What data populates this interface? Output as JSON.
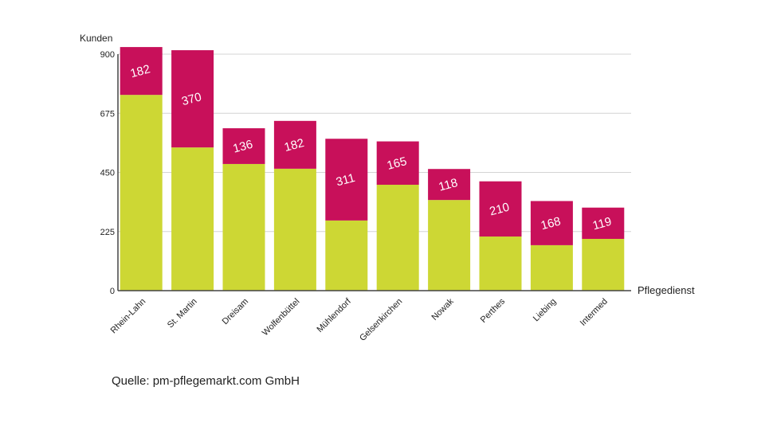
{
  "chart_data": {
    "type": "bar",
    "stacked": true,
    "title": "",
    "ylabel": "Kunden",
    "xlabel": "Pflegedienst",
    "ylim": [
      0,
      900
    ],
    "yticks": [
      0,
      225,
      450,
      675,
      900
    ],
    "grid": true,
    "categories": [
      "Rhein-Lahn",
      "St. Martin",
      "Dreisam",
      "Wolfenbüttel",
      "Mühlendorf",
      "Gelsenkirchen",
      "Nowak",
      "Perthes",
      "Liebing",
      "Intermed"
    ],
    "series": [
      {
        "color": "#cdd734",
        "values": [
          745,
          545,
          482,
          464,
          267,
          403,
          345,
          206,
          173,
          197
        ]
      },
      {
        "color": "#c8105a",
        "values": [
          182,
          370,
          136,
          182,
          311,
          165,
          118,
          210,
          168,
          119
        ],
        "labels_shown": true
      }
    ]
  },
  "source": "Quelle: pm-pflegemarkt.com GmbH"
}
